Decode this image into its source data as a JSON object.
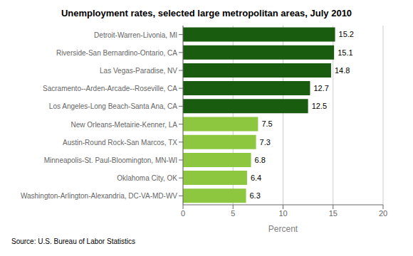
{
  "chart_data": {
    "type": "bar",
    "orientation": "horizontal",
    "title": "Unemployment rates, selected large metropolitan areas, July 2010",
    "categories": [
      "Washington-Arlington-Alexandria, DC-VA-MD-WV",
      "Oklahoma City, OK",
      "Minneapolis-St. Paul-Bloomington, MN-WI",
      "Austin-Round Rock-San Marcos, TX",
      "New Orleans-Metairie-Kenner, LA",
      "Los Angeles-Long Beach-Santa Ana, CA",
      "Sacramento--Arden-Arcade--Roseville, CA",
      "Las Vegas-Paradise, NV",
      "Riverside-San Bernardino-Ontario, CA",
      "Detroit-Warren-Livonia, MI"
    ],
    "values": [
      6.3,
      6.4,
      6.8,
      7.3,
      7.5,
      12.5,
      12.7,
      14.8,
      15.1,
      15.2
    ],
    "colors": [
      "#8DC63F",
      "#8DC63F",
      "#8DC63F",
      "#8DC63F",
      "#8DC63F",
      "#1A5C0F",
      "#1A5C0F",
      "#1A5C0F",
      "#1A5C0F",
      "#1A5C0F"
    ],
    "xlabel": "Percent",
    "xlim": [
      0,
      20
    ],
    "xticks": [
      0,
      5,
      10,
      15,
      20
    ],
    "grid": true,
    "data_labels": true,
    "annotation": "Source: U.S. Bureau of Labor Statistics"
  }
}
